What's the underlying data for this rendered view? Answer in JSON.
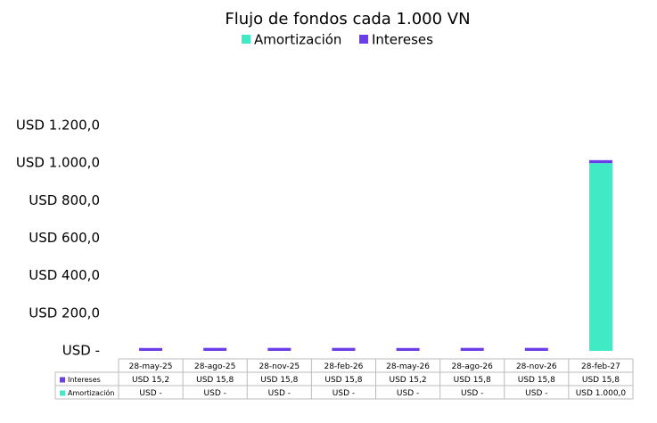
{
  "chart_data": {
    "type": "stacked-bar",
    "title": "Flujo de fondos cada 1.000 VN",
    "categories": [
      "28-may-25",
      "28-ago-25",
      "28-nov-25",
      "28-feb-26",
      "28-may-26",
      "28-ago-26",
      "28-nov-26",
      "28-feb-27"
    ],
    "series": [
      {
        "name": "Amortización",
        "color": "#40eac4",
        "values": [
          0,
          0,
          0,
          0,
          0,
          0,
          0,
          1000
        ],
        "value_labels": [
          "USD -",
          "USD -",
          "USD -",
          "USD -",
          "USD -",
          "USD -",
          "USD -",
          "USD 1.000,0"
        ]
      },
      {
        "name": "Intereses",
        "color": "#6a3de8",
        "values": [
          15.2,
          15.8,
          15.8,
          15.8,
          15.2,
          15.8,
          15.8,
          15.8
        ],
        "value_labels": [
          "USD 15,2",
          "USD 15,8",
          "USD 15,8",
          "USD 15,8",
          "USD 15,2",
          "USD 15,8",
          "USD 15,8",
          "USD 15,8"
        ]
      }
    ],
    "ylim": [
      0,
      1200
    ],
    "yticks": [
      {
        "value": 0,
        "label": "USD -"
      },
      {
        "value": 200,
        "label": "USD 200,0"
      },
      {
        "value": 400,
        "label": "USD 400,0"
      },
      {
        "value": 600,
        "label": "USD 600,0"
      },
      {
        "value": 800,
        "label": "USD 800,0"
      },
      {
        "value": 1000,
        "label": "USD 1.000,0"
      },
      {
        "value": 1200,
        "label": "USD 1.200,0"
      }
    ],
    "legend": "top",
    "grid": false
  }
}
